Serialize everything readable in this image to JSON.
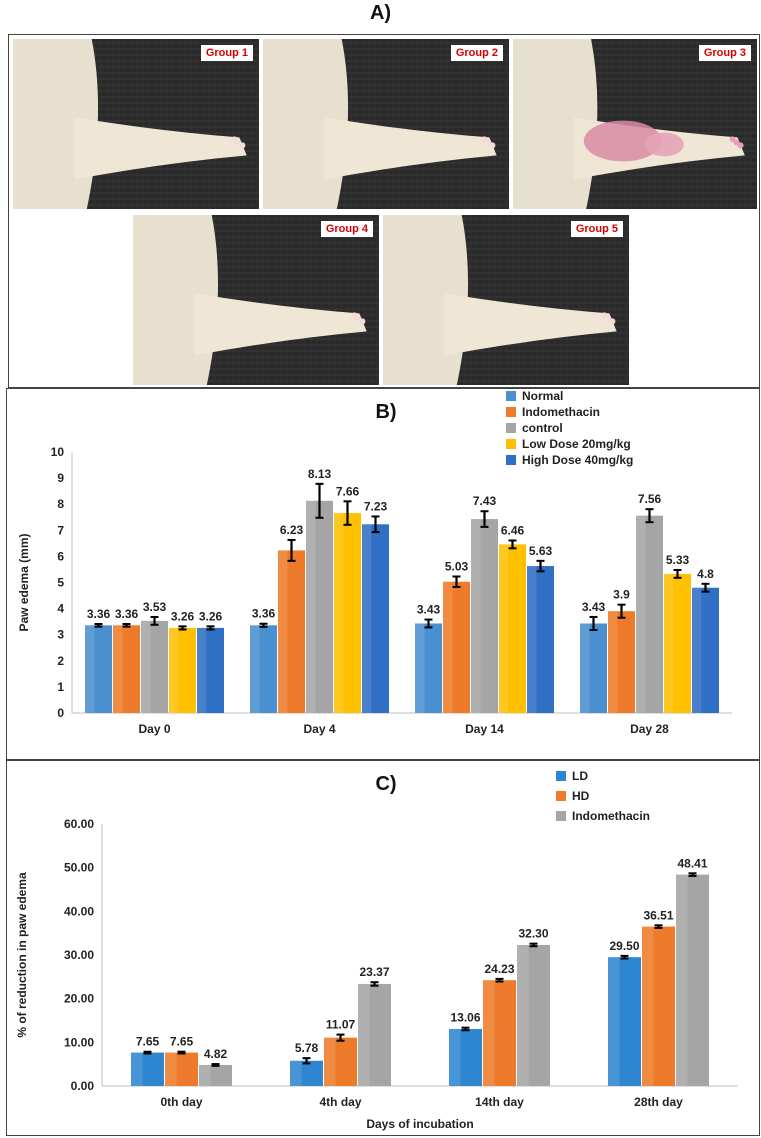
{
  "panelA": {
    "title": "A)",
    "photos": [
      {
        "label": "Group 1",
        "inflamed": false
      },
      {
        "label": "Group 2",
        "inflamed": false
      },
      {
        "label": "Group 3",
        "inflamed": true
      },
      {
        "label": "Group 4",
        "inflamed": false
      },
      {
        "label": "Group 5",
        "inflamed": false
      }
    ]
  },
  "chart_data": [
    {
      "panel": "B)",
      "type": "bar",
      "categories": [
        "Day 0",
        "Day 4",
        "Day 14",
        "Day 28"
      ],
      "ylabel": "Paw edema (mm)",
      "ylim": [
        0,
        10
      ],
      "yticks": [
        0,
        1,
        2,
        3,
        4,
        5,
        6,
        7,
        8,
        9,
        10
      ],
      "legend_position": "top-right",
      "series": [
        {
          "name": "Normal",
          "color": "#4a90d0",
          "values": [
            3.36,
            3.36,
            3.43,
            3.43
          ],
          "labels": [
            "3.36",
            "3.36",
            "3.43",
            "3.43"
          ],
          "errors": [
            0.05,
            0.06,
            0.15,
            0.25
          ]
        },
        {
          "name": "Indomethacin",
          "color": "#ee7b2b",
          "values": [
            3.36,
            6.23,
            5.03,
            3.9
          ],
          "labels": [
            "3.36",
            "6.23",
            "5.03",
            "3.9"
          ],
          "errors": [
            0.05,
            0.4,
            0.2,
            0.25
          ]
        },
        {
          "name": "control",
          "color": "#a5a5a5",
          "values": [
            3.53,
            8.13,
            7.43,
            7.56
          ],
          "labels": [
            "3.53",
            "8.13",
            "7.43",
            "7.56"
          ],
          "errors": [
            0.15,
            0.65,
            0.3,
            0.25
          ]
        },
        {
          "name": "Low Dose 20mg/kg",
          "color": "#ffc000",
          "values": [
            3.26,
            7.66,
            6.46,
            5.33
          ],
          "labels": [
            "3.26",
            "7.66",
            "6.46",
            "5.33"
          ],
          "errors": [
            0.06,
            0.45,
            0.15,
            0.15
          ]
        },
        {
          "name": "High Dose 40mg/kg",
          "color": "#2f6fc4",
          "values": [
            3.26,
            7.23,
            5.63,
            4.8
          ],
          "labels": [
            "3.26",
            "7.23",
            "5.63",
            "4.8"
          ],
          "errors": [
            0.06,
            0.3,
            0.2,
            0.15
          ]
        }
      ]
    },
    {
      "panel": "C)",
      "type": "bar",
      "categories": [
        "0th day",
        "4th day",
        "14th day",
        "28th day"
      ],
      "ylabel": "% of reduction in paw edema",
      "xlabel": "Days of incubation",
      "ylim": [
        0,
        60
      ],
      "yticks": [
        "0.00",
        "10.00",
        "20.00",
        "30.00",
        "40.00",
        "50.00",
        "60.00"
      ],
      "legend_position": "top-right",
      "series": [
        {
          "name": "LD",
          "color": "#2e86d1",
          "values": [
            7.65,
            5.78,
            13.06,
            29.5
          ],
          "labels": [
            "7.65",
            "5.78",
            "13.06",
            "29.50"
          ],
          "errors": [
            0.2,
            0.6,
            0.3,
            0.3
          ]
        },
        {
          "name": "HD",
          "color": "#ee7b2b",
          "values": [
            7.65,
            11.07,
            24.23,
            36.51
          ],
          "labels": [
            "7.65",
            "11.07",
            "24.23",
            "36.51"
          ],
          "errors": [
            0.2,
            0.7,
            0.3,
            0.3
          ]
        },
        {
          "name": "Indomethacin",
          "color": "#a5a5a5",
          "values": [
            4.82,
            23.37,
            32.3,
            48.41
          ],
          "labels": [
            "4.82",
            "23.37",
            "32.30",
            "48.41"
          ],
          "errors": [
            0.2,
            0.4,
            0.3,
            0.3
          ]
        }
      ]
    }
  ]
}
